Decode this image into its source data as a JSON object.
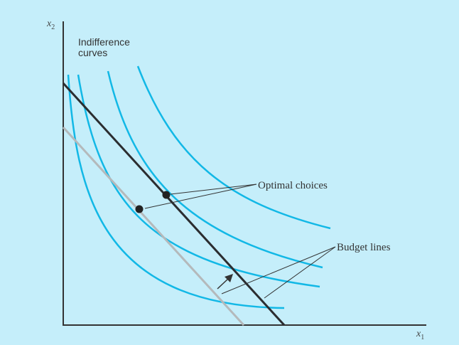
{
  "figure": {
    "axes": {
      "x_label": "x",
      "x_subscript": "1",
      "y_label": "x",
      "y_subscript": "2"
    },
    "labels": {
      "indifference_line1": "Indifference",
      "indifference_line2": "curves",
      "optimal_choices": "Optimal choices",
      "budget_lines": "Budget lines"
    },
    "indifference_curve_count": 4,
    "budget_line_count": 2,
    "optimal_choice_count": 2,
    "shift_arrow_direction": "outward",
    "colors": {
      "background": "#c5eefa",
      "indifference_curve": "#12b8e6",
      "budget_line_initial": "#b4b9bb",
      "budget_line_new": "#2b2d30",
      "axis": "#333333",
      "point": "#222222"
    }
  }
}
